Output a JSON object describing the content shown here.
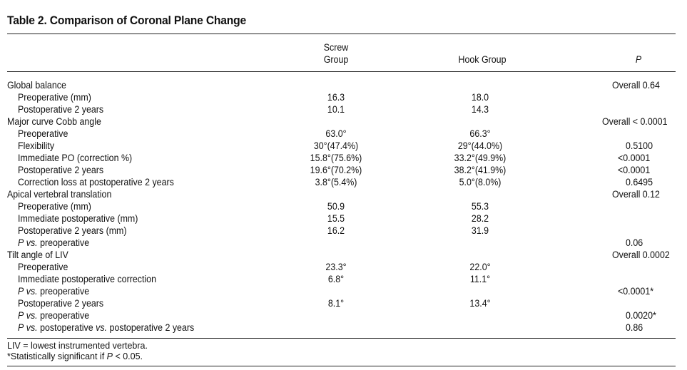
{
  "title": "Table 2.  Comparison of Coronal Plane Change",
  "columns": {
    "screw_line1": "Screw",
    "screw_line2": "Group",
    "hook": "Hook Group",
    "p": "P"
  },
  "rows": [
    {
      "label": "Global balance",
      "indent": false,
      "screw": "",
      "hook": "",
      "p": "Overall 0.64"
    },
    {
      "label": "Preoperative (mm)",
      "indent": true,
      "screw": "16.3",
      "hook": "18.0",
      "p": ""
    },
    {
      "label": "Postoperative 2 years",
      "indent": true,
      "screw": "10.1",
      "hook": "14.3",
      "p": ""
    },
    {
      "label": "Major curve Cobb angle",
      "indent": false,
      "screw": "",
      "hook": "",
      "p": "Overall < 0.0001"
    },
    {
      "label": "Preoperative",
      "indent": true,
      "screw": "63.0°",
      "hook": "66.3°",
      "p": ""
    },
    {
      "label": "Flexibility",
      "indent": true,
      "screw": "30°(47.4%)",
      "hook": "29°(44.0%)",
      "p": "0.5100"
    },
    {
      "label": "Immediate PO (correction %)",
      "indent": true,
      "screw": "15.8°(75.6%)",
      "hook": "33.2°(49.9%)",
      "p": "<0.0001"
    },
    {
      "label": "Postoperative 2 years",
      "indent": true,
      "screw": "19.6°(70.2%)",
      "hook": "38.2°(41.9%)",
      "p": "<0.0001"
    },
    {
      "label": "Correction loss at postoperative 2 years",
      "indent": true,
      "screw": "3.8°(5.4%)",
      "hook": "5.0°(8.0%)",
      "p": "0.6495"
    },
    {
      "label": "Apical vertebral translation",
      "indent": false,
      "screw": "",
      "hook": "",
      "p": "Overall 0.12"
    },
    {
      "label": "Preoperative (mm)",
      "indent": true,
      "screw": "50.9",
      "hook": "55.3",
      "p": ""
    },
    {
      "label": "Immediate postoperative (mm)",
      "indent": true,
      "screw": "15.5",
      "hook": "28.2",
      "p": ""
    },
    {
      "label": "Postoperative 2 years (mm)",
      "indent": true,
      "screw": "16.2",
      "hook": "31.9",
      "p": ""
    },
    {
      "label": "P vs. preoperative",
      "indent": true,
      "screw": "",
      "hook": "",
      "p": "0.06"
    },
    {
      "label": "Tilt angle of LIV",
      "indent": false,
      "screw": "",
      "hook": "",
      "p": "Overall 0.0002"
    },
    {
      "label": "Preoperative",
      "indent": true,
      "screw": "23.3°",
      "hook": "22.0°",
      "p": ""
    },
    {
      "label": "Immediate postoperative correction",
      "indent": true,
      "screw": "6.8°",
      "hook": "11.1°",
      "p": ""
    },
    {
      "label": "P vs. preoperative",
      "indent": true,
      "screw": "",
      "hook": "",
      "p": "<0.0001*"
    },
    {
      "label": "Postoperative 2 years",
      "indent": true,
      "screw": "8.1°",
      "hook": "13.4°",
      "p": ""
    },
    {
      "label": "P vs. preoperative",
      "indent": true,
      "screw": "",
      "hook": "",
      "p": "0.0020*"
    },
    {
      "label": "P vs. postoperative vs. postoperative 2 years",
      "indent": true,
      "screw": "",
      "hook": "",
      "p": "0.86"
    }
  ],
  "footnotes": {
    "line1": "LIV = lowest instrumented vertebra.",
    "line2": "*Statistically significant if P < 0.05."
  }
}
